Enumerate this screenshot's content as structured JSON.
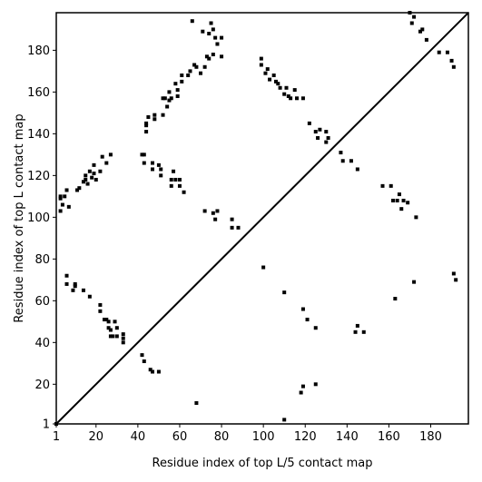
{
  "chart_data": {
    "type": "scatter",
    "title": "",
    "xlabel": "Residue index of top L/5 contact map",
    "ylabel": "Residue index of top L contact map",
    "xlim": [
      1,
      198
    ],
    "ylim": [
      1,
      198
    ],
    "x_ticks": [
      1,
      20,
      40,
      60,
      80,
      100,
      120,
      140,
      160,
      180
    ],
    "y_ticks": [
      1,
      20,
      40,
      60,
      80,
      100,
      120,
      140,
      160,
      180
    ],
    "diagonal": true,
    "marker": "square",
    "color": "#000000",
    "series": [
      {
        "points": [
          [
            1,
            1
          ],
          [
            3,
            109
          ],
          [
            3,
            110
          ],
          [
            3,
            103
          ],
          [
            4,
            106
          ],
          [
            5,
            110
          ],
          [
            6,
            113
          ],
          [
            7,
            105
          ],
          [
            6,
            72
          ],
          [
            6,
            68
          ],
          [
            9,
            65
          ],
          [
            10,
            67
          ],
          [
            10,
            68
          ],
          [
            11,
            113
          ],
          [
            12,
            114
          ],
          [
            14,
            117
          ],
          [
            15,
            118
          ],
          [
            15,
            120
          ],
          [
            16,
            116
          ],
          [
            17,
            122
          ],
          [
            18,
            119
          ],
          [
            19,
            121
          ],
          [
            19,
            125
          ],
          [
            20,
            118
          ],
          [
            22,
            122
          ],
          [
            23,
            129
          ],
          [
            25,
            126
          ],
          [
            27,
            130
          ],
          [
            24,
            51
          ],
          [
            25,
            51
          ],
          [
            26,
            50
          ],
          [
            26,
            47
          ],
          [
            27,
            46
          ],
          [
            27,
            43
          ],
          [
            28,
            43
          ],
          [
            29,
            50
          ],
          [
            30,
            47
          ],
          [
            30,
            43
          ],
          [
            33,
            44
          ],
          [
            33,
            42
          ],
          [
            33,
            40
          ],
          [
            22,
            58
          ],
          [
            22,
            55
          ],
          [
            14,
            65
          ],
          [
            17,
            62
          ],
          [
            42,
            130
          ],
          [
            43,
            130
          ],
          [
            43,
            126
          ],
          [
            44,
            141
          ],
          [
            44,
            144
          ],
          [
            44,
            145
          ],
          [
            45,
            148
          ],
          [
            47,
            126
          ],
          [
            47,
            123
          ],
          [
            48,
            147
          ],
          [
            48,
            149
          ],
          [
            50,
            125
          ],
          [
            51,
            120
          ],
          [
            51,
            123
          ],
          [
            52,
            149
          ],
          [
            52,
            157
          ],
          [
            53,
            157
          ],
          [
            54,
            153
          ],
          [
            55,
            156
          ],
          [
            55,
            160
          ],
          [
            56,
            157
          ],
          [
            57,
            122
          ],
          [
            56,
            118
          ],
          [
            56,
            115
          ],
          [
            58,
            164
          ],
          [
            58,
            118
          ],
          [
            59,
            158
          ],
          [
            59,
            161
          ],
          [
            60,
            118
          ],
          [
            60,
            115
          ],
          [
            61,
            165
          ],
          [
            61,
            168
          ],
          [
            62,
            112
          ],
          [
            64,
            168
          ],
          [
            65,
            170
          ],
          [
            66,
            194
          ],
          [
            67,
            173
          ],
          [
            68,
            172
          ],
          [
            70,
            169
          ],
          [
            71,
            189
          ],
          [
            72,
            172
          ],
          [
            73,
            177
          ],
          [
            74,
            188
          ],
          [
            75,
            193
          ],
          [
            74,
            176
          ],
          [
            76,
            178
          ],
          [
            76,
            190
          ],
          [
            77,
            186
          ],
          [
            78,
            183
          ],
          [
            80,
            186
          ],
          [
            80,
            177
          ],
          [
            76,
            102
          ],
          [
            77,
            99
          ],
          [
            78,
            103
          ],
          [
            72,
            103
          ],
          [
            85,
            99
          ],
          [
            85,
            95
          ],
          [
            88,
            95
          ],
          [
            68,
            11
          ],
          [
            42,
            34
          ],
          [
            43,
            31
          ],
          [
            46,
            27
          ],
          [
            47,
            26
          ],
          [
            50,
            26
          ],
          [
            99,
            176
          ],
          [
            99,
            173
          ],
          [
            100,
            76
          ],
          [
            101,
            169
          ],
          [
            102,
            171
          ],
          [
            103,
            166
          ],
          [
            105,
            168
          ],
          [
            106,
            165
          ],
          [
            107,
            164
          ],
          [
            108,
            162
          ],
          [
            110,
            159
          ],
          [
            111,
            162
          ],
          [
            112,
            158
          ],
          [
            113,
            157
          ],
          [
            115,
            161
          ],
          [
            116,
            157
          ],
          [
            119,
            157
          ],
          [
            122,
            145
          ],
          [
            125,
            141
          ],
          [
            126,
            138
          ],
          [
            127,
            142
          ],
          [
            130,
            136
          ],
          [
            130,
            141
          ],
          [
            131,
            138
          ],
          [
            137,
            131
          ],
          [
            138,
            127
          ],
          [
            142,
            127
          ],
          [
            145,
            123
          ],
          [
            157,
            115
          ],
          [
            161,
            115
          ],
          [
            162,
            108
          ],
          [
            164,
            108
          ],
          [
            165,
            111
          ],
          [
            166,
            104
          ],
          [
            167,
            108
          ],
          [
            169,
            107
          ],
          [
            173,
            100
          ],
          [
            110,
            64
          ],
          [
            119,
            56
          ],
          [
            121,
            51
          ],
          [
            125,
            47
          ],
          [
            144,
            45
          ],
          [
            145,
            48
          ],
          [
            148,
            45
          ],
          [
            163,
            61
          ],
          [
            172,
            69
          ],
          [
            110,
            3
          ],
          [
            118,
            16
          ],
          [
            119,
            19
          ],
          [
            125,
            20
          ],
          [
            170,
            198
          ],
          [
            171,
            193
          ],
          [
            172,
            196
          ],
          [
            175,
            189
          ],
          [
            176,
            190
          ],
          [
            178,
            185
          ],
          [
            184,
            179
          ],
          [
            188,
            179
          ],
          [
            190,
            175
          ],
          [
            191,
            172
          ],
          [
            191,
            73
          ],
          [
            192,
            70
          ]
        ]
      }
    ]
  }
}
